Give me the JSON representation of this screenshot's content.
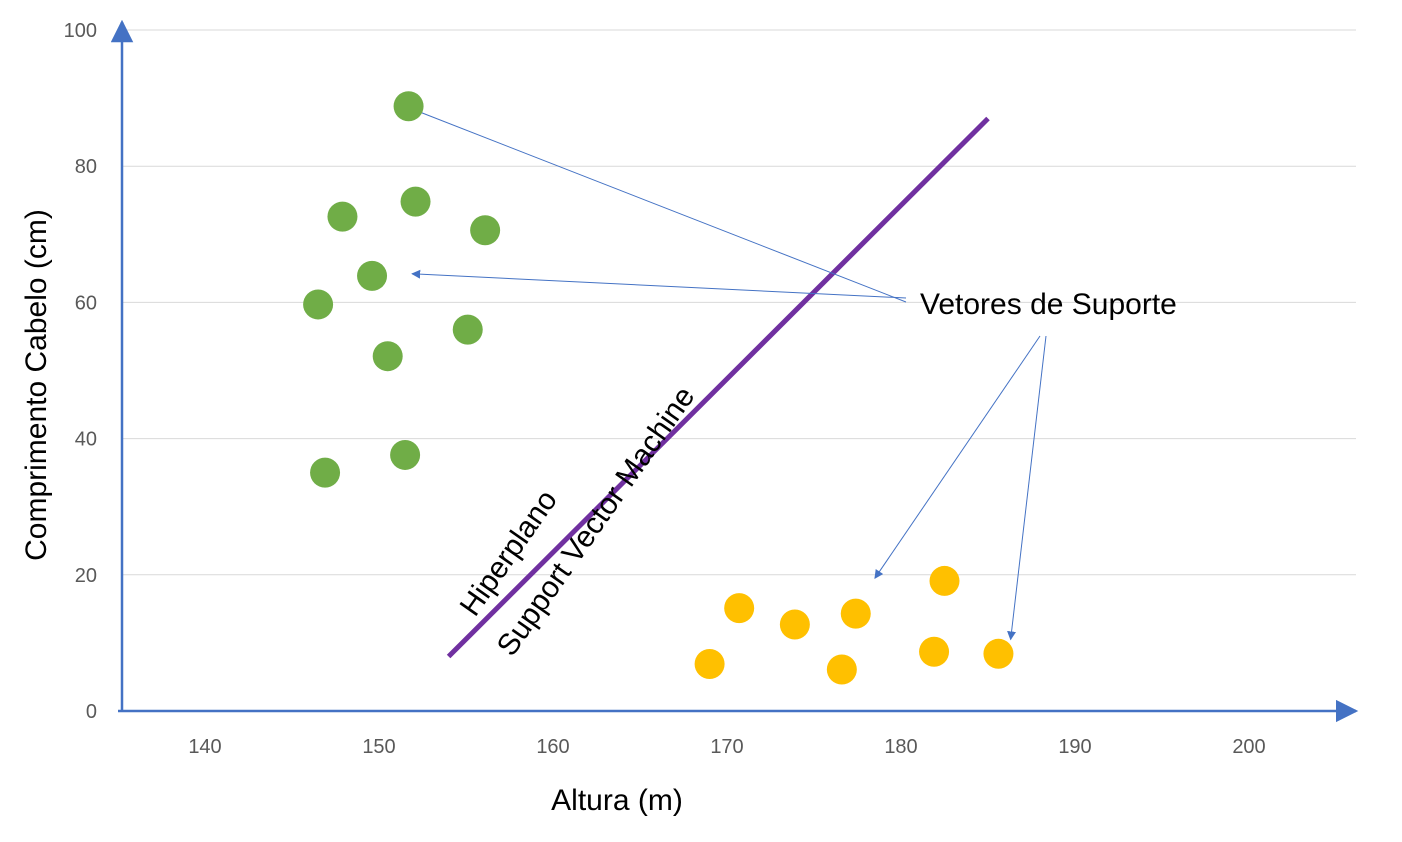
{
  "chart_data": {
    "type": "scatter",
    "title": "",
    "xlabel": "Altura (m)",
    "ylabel": "Comprimento Cabelo (cm)",
    "xlim": [
      135,
      205
    ],
    "ylim": [
      0,
      100
    ],
    "x_ticks": [
      "140",
      "150",
      "160",
      "170",
      "180",
      "190",
      "200"
    ],
    "y_ticks": [
      "0",
      "20",
      "40",
      "60",
      "80",
      "100"
    ],
    "grid": true,
    "colors": {
      "green": "#70ad47",
      "yellow": "#ffc000",
      "hyperplane": "#7030a0",
      "axis": "#4472c4"
    },
    "series": [
      {
        "color": "#70ad47",
        "points": [
          {
            "x": 151.7,
            "y": 88.8
          },
          {
            "x": 152.1,
            "y": 74.8
          },
          {
            "x": 147.9,
            "y": 72.6
          },
          {
            "x": 156.1,
            "y": 70.6
          },
          {
            "x": 149.6,
            "y": 63.9
          },
          {
            "x": 146.5,
            "y": 59.7
          },
          {
            "x": 155.1,
            "y": 56.0
          },
          {
            "x": 150.5,
            "y": 52.1
          },
          {
            "x": 151.5,
            "y": 37.6
          },
          {
            "x": 146.9,
            "y": 35.0
          }
        ]
      },
      {
        "color": "#ffc000",
        "points": [
          {
            "x": 182.5,
            "y": 19.1
          },
          {
            "x": 170.7,
            "y": 15.1
          },
          {
            "x": 177.4,
            "y": 14.3
          },
          {
            "x": 173.9,
            "y": 12.7
          },
          {
            "x": 181.9,
            "y": 8.7
          },
          {
            "x": 185.6,
            "y": 8.4
          },
          {
            "x": 169.0,
            "y": 6.9
          },
          {
            "x": 176.6,
            "y": 6.1
          }
        ]
      }
    ],
    "hyperplane": {
      "x1": 154.0,
      "y1": 8.0,
      "x2": 185.0,
      "y2": 87.0
    },
    "annotations": {
      "support_vectors_label": "Vetores de Suporte",
      "hyperplane_label_1": "Hiperplano",
      "hyperplane_label_2": "Support Vector Machine"
    }
  }
}
